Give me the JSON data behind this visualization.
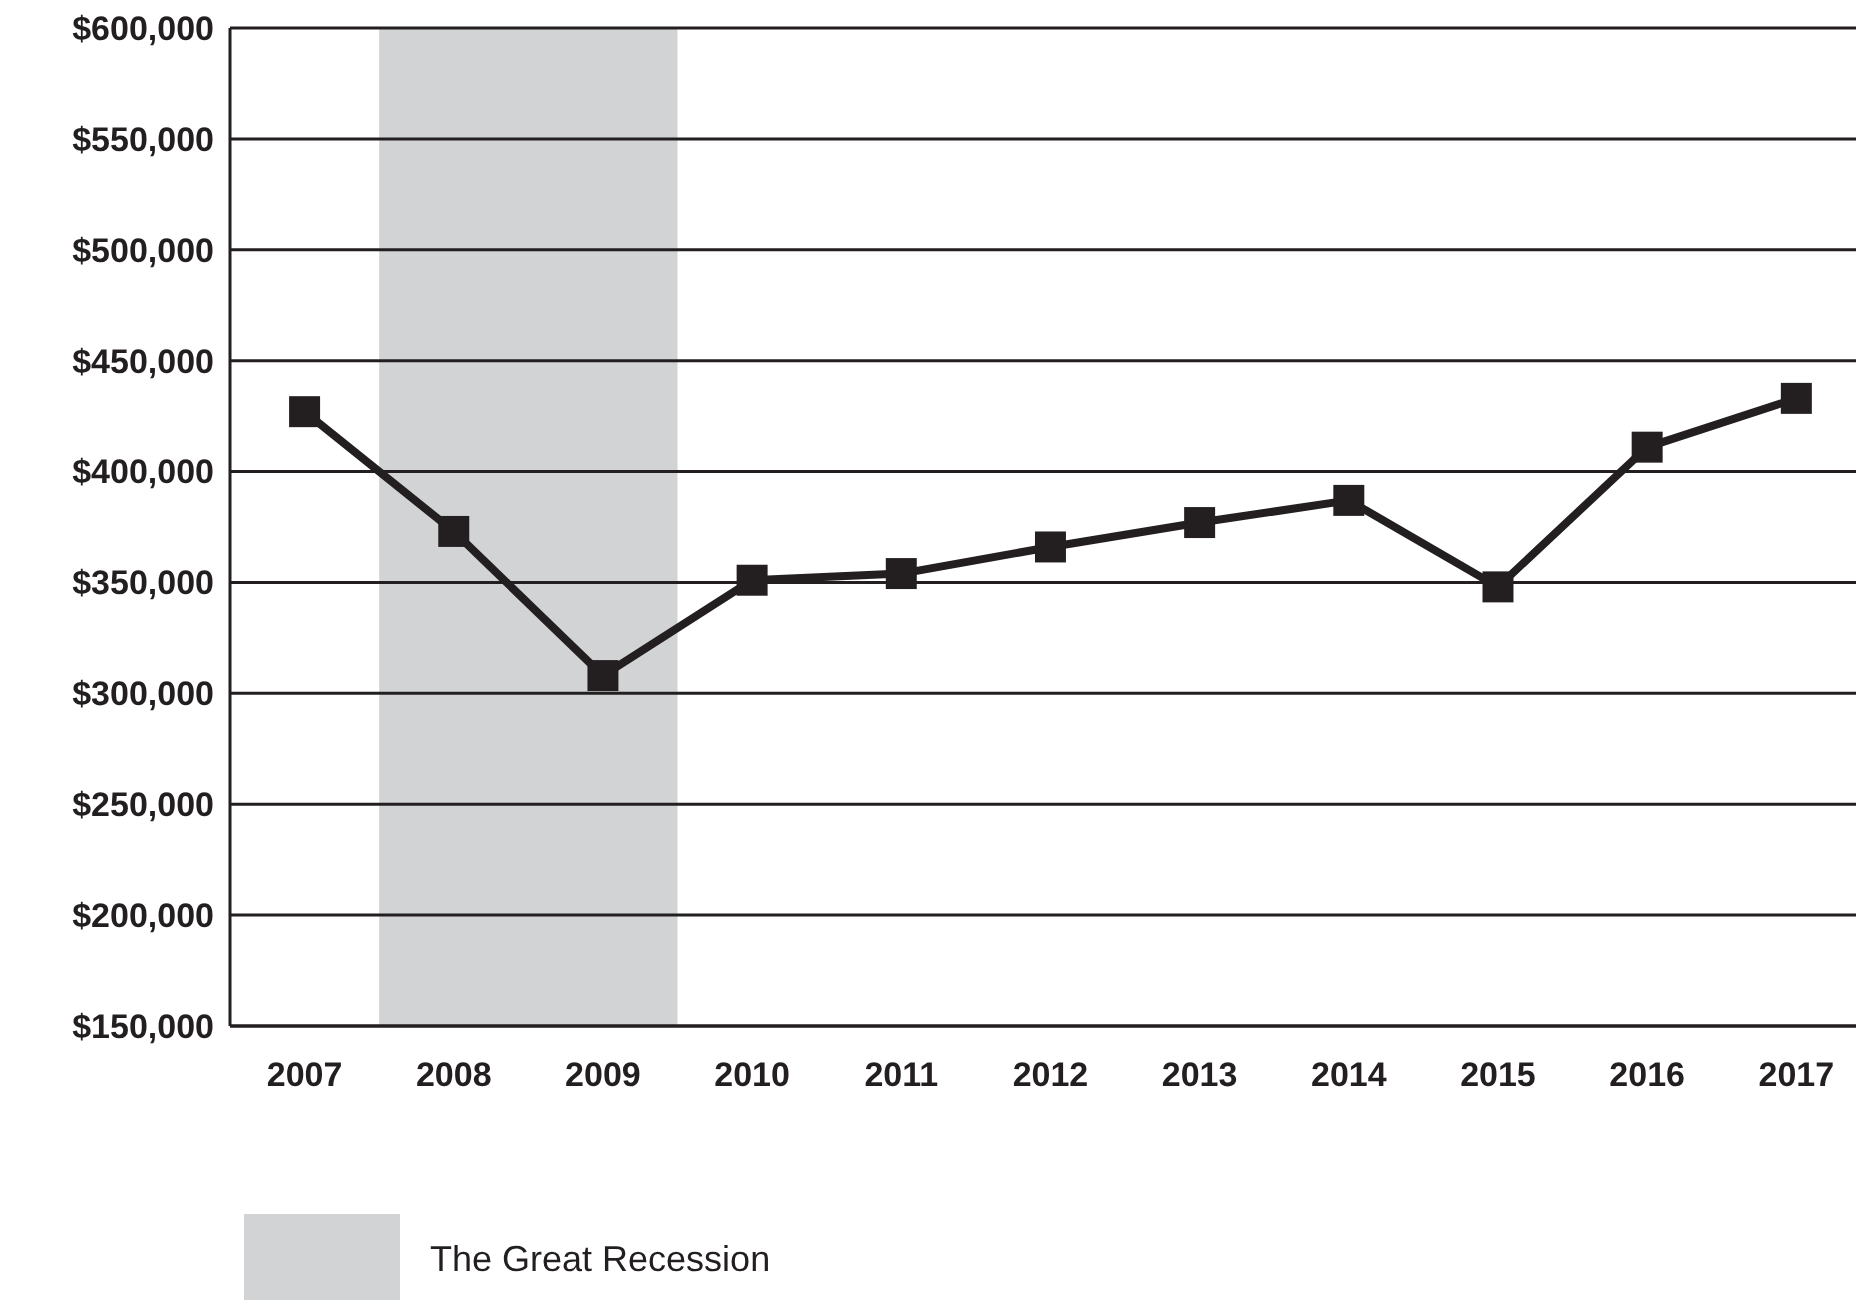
{
  "chart_data": {
    "type": "line",
    "x": [
      2007,
      2008,
      2009,
      2010,
      2011,
      2012,
      2013,
      2014,
      2015,
      2016,
      2017
    ],
    "series": [
      {
        "color": "#231f20",
        "values": [
          427000,
          373000,
          308000,
          351000,
          354000,
          366000,
          377000,
          387000,
          348000,
          411000,
          433000
        ]
      }
    ],
    "xlim": [
      2006.5,
      2017.4
    ],
    "xticks": [
      2007,
      2008,
      2009,
      2010,
      2011,
      2012,
      2013,
      2014,
      2015,
      2016,
      2017
    ],
    "ylim": [
      150000,
      600000
    ],
    "yticks": [
      {
        "value": 150000,
        "label": "$150,000"
      },
      {
        "value": 200000,
        "label": "$200,000"
      },
      {
        "value": 250000,
        "label": "$250,000"
      },
      {
        "value": 300000,
        "label": "$300,000"
      },
      {
        "value": 350000,
        "label": "$350,000"
      },
      {
        "value": 400000,
        "label": "$400,000"
      },
      {
        "value": 450000,
        "label": "$450,000"
      },
      {
        "value": 500000,
        "label": "$500,000"
      },
      {
        "value": 550000,
        "label": "$550,000"
      },
      {
        "value": 600000,
        "label": "$600,000"
      }
    ],
    "bands": [
      {
        "axis": "x",
        "from": 2007.5,
        "to": 2009.5,
        "label": "The Great Recession",
        "color": "#d1d3d4"
      }
    ],
    "grid": "y",
    "legend": "bottom left",
    "marker": "square",
    "line_style": "solid"
  }
}
